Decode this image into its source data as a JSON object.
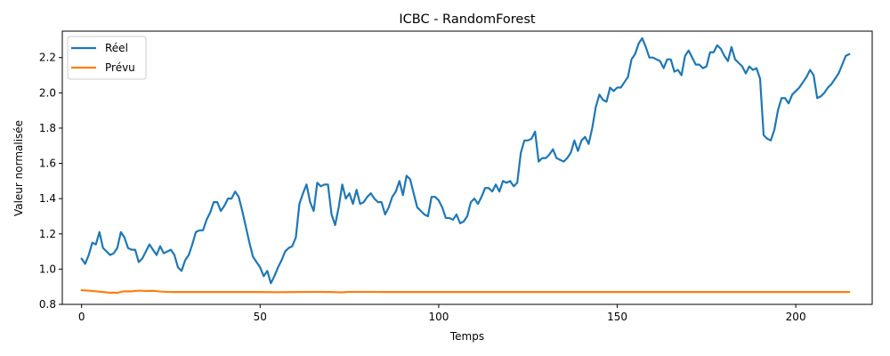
{
  "chart_data": {
    "type": "line",
    "title": "ICBC - RandomForest",
    "xlabel": "Temps",
    "ylabel": "Valeur normalisée",
    "xlim": [
      -5.4,
      221.4
    ],
    "ylim": [
      0.8,
      2.35
    ],
    "xticks": [
      0,
      50,
      100,
      150,
      200
    ],
    "yticks": [
      0.8,
      1.0,
      1.2,
      1.4,
      1.6,
      1.8,
      2.0,
      2.2
    ],
    "ytick_labels": [
      "0.8",
      "1.0",
      "1.2",
      "1.4",
      "1.6",
      "1.8",
      "2.0",
      "2.2"
    ],
    "grid": false,
    "legend_position": "upper-left",
    "series": [
      {
        "name": "Réel",
        "color": "#1f77b4",
        "x": [
          0,
          1,
          2,
          3,
          4,
          5,
          6,
          7,
          8,
          9,
          10,
          11,
          12,
          13,
          14,
          15,
          16,
          17,
          18,
          19,
          20,
          21,
          22,
          23,
          24,
          25,
          26,
          27,
          28,
          29,
          30,
          31,
          32,
          33,
          34,
          35,
          36,
          37,
          38,
          39,
          40,
          41,
          42,
          43,
          44,
          45,
          46,
          47,
          48,
          49,
          50,
          51,
          52,
          53,
          54,
          55,
          56,
          57,
          58,
          59,
          60,
          61,
          62,
          63,
          64,
          65,
          66,
          67,
          68,
          69,
          70,
          71,
          72,
          73,
          74,
          75,
          76,
          77,
          78,
          79,
          80,
          81,
          82,
          83,
          84,
          85,
          86,
          87,
          88,
          89,
          90,
          91,
          92,
          93,
          94,
          95,
          96,
          97,
          98,
          99,
          100,
          101,
          102,
          103,
          104,
          105,
          106,
          107,
          108,
          109,
          110,
          111,
          112,
          113,
          114,
          115,
          116,
          117,
          118,
          119,
          120,
          121,
          122,
          123,
          124,
          125,
          126,
          127,
          128,
          129,
          130,
          131,
          132,
          133,
          134,
          135,
          136,
          137,
          138,
          139,
          140,
          141,
          142,
          143,
          144,
          145,
          146,
          147,
          148,
          149,
          150,
          151,
          152,
          153,
          154,
          155,
          156,
          157,
          158,
          159,
          160,
          161,
          162,
          163,
          164,
          165,
          166,
          167,
          168,
          169,
          170,
          171,
          172,
          173,
          174,
          175,
          176,
          177,
          178,
          179,
          180,
          181,
          182,
          183,
          184,
          185,
          186,
          187,
          188,
          189,
          190,
          191,
          192,
          193,
          194,
          195,
          196,
          197,
          198,
          199,
          200,
          201,
          202,
          203,
          204,
          205,
          206,
          207,
          208,
          209,
          210,
          211,
          212,
          213,
          214,
          215
        ],
        "values": [
          1.06,
          1.03,
          1.08,
          1.15,
          1.14,
          1.21,
          1.12,
          1.1,
          1.08,
          1.09,
          1.12,
          1.21,
          1.18,
          1.12,
          1.11,
          1.11,
          1.04,
          1.06,
          1.1,
          1.14,
          1.11,
          1.08,
          1.13,
          1.09,
          1.1,
          1.11,
          1.08,
          1.01,
          0.99,
          1.05,
          1.08,
          1.14,
          1.21,
          1.22,
          1.22,
          1.28,
          1.32,
          1.38,
          1.38,
          1.33,
          1.36,
          1.4,
          1.4,
          1.44,
          1.41,
          1.33,
          1.24,
          1.15,
          1.07,
          1.04,
          1.01,
          0.96,
          0.99,
          0.92,
          0.96,
          1.01,
          1.05,
          1.1,
          1.12,
          1.13,
          1.18,
          1.37,
          1.43,
          1.48,
          1.38,
          1.33,
          1.49,
          1.47,
          1.48,
          1.48,
          1.31,
          1.25,
          1.35,
          1.48,
          1.4,
          1.43,
          1.37,
          1.45,
          1.37,
          1.38,
          1.41,
          1.43,
          1.4,
          1.38,
          1.38,
          1.31,
          1.35,
          1.41,
          1.44,
          1.5,
          1.42,
          1.53,
          1.51,
          1.43,
          1.35,
          1.33,
          1.31,
          1.3,
          1.41,
          1.41,
          1.39,
          1.35,
          1.29,
          1.29,
          1.28,
          1.31,
          1.26,
          1.27,
          1.3,
          1.38,
          1.4,
          1.37,
          1.41,
          1.46,
          1.46,
          1.44,
          1.48,
          1.44,
          1.5,
          1.49,
          1.5,
          1.47,
          1.49,
          1.66,
          1.73,
          1.73,
          1.74,
          1.78,
          1.61,
          1.63,
          1.63,
          1.65,
          1.68,
          1.63,
          1.62,
          1.61,
          1.63,
          1.66,
          1.73,
          1.67,
          1.73,
          1.75,
          1.71,
          1.8,
          1.92,
          1.99,
          1.96,
          1.95,
          2.03,
          2.01,
          2.03,
          2.03,
          2.06,
          2.09,
          2.19,
          2.22,
          2.28,
          2.31,
          2.26,
          2.2,
          2.2,
          2.19,
          2.18,
          2.14,
          2.19,
          2.19,
          2.12,
          2.13,
          2.1,
          2.21,
          2.24,
          2.2,
          2.16,
          2.16,
          2.14,
          2.15,
          2.23,
          2.23,
          2.27,
          2.25,
          2.21,
          2.18,
          2.26,
          2.19,
          2.17,
          2.15,
          2.11,
          2.15,
          2.13,
          2.14,
          2.08,
          1.76,
          1.74,
          1.73,
          1.79,
          1.9,
          1.97,
          1.97,
          1.94,
          1.99,
          2.01,
          2.03,
          2.06,
          2.09,
          2.13,
          2.1,
          1.97,
          1.98,
          2.0,
          2.03,
          2.05,
          2.08,
          2.11,
          2.16,
          2.21,
          2.22
        ]
      },
      {
        "name": "Prévu",
        "color": "#ff7f0e",
        "x": [
          0,
          2,
          4,
          6,
          8,
          9,
          10,
          11,
          12,
          14,
          16,
          18,
          20,
          22,
          24,
          26,
          30,
          40,
          50,
          55,
          60,
          65,
          70,
          73,
          75,
          80,
          85,
          90,
          100,
          120,
          140,
          150,
          170,
          180,
          190,
          200,
          210,
          215
        ],
        "values": [
          0.88,
          0.878,
          0.874,
          0.87,
          0.866,
          0.867,
          0.865,
          0.871,
          0.874,
          0.874,
          0.878,
          0.876,
          0.877,
          0.873,
          0.871,
          0.87,
          0.87,
          0.87,
          0.87,
          0.869,
          0.87,
          0.871,
          0.87,
          0.868,
          0.871,
          0.871,
          0.87,
          0.87,
          0.87,
          0.87,
          0.87,
          0.87,
          0.87,
          0.87,
          0.87,
          0.87,
          0.87,
          0.87
        ]
      }
    ]
  }
}
